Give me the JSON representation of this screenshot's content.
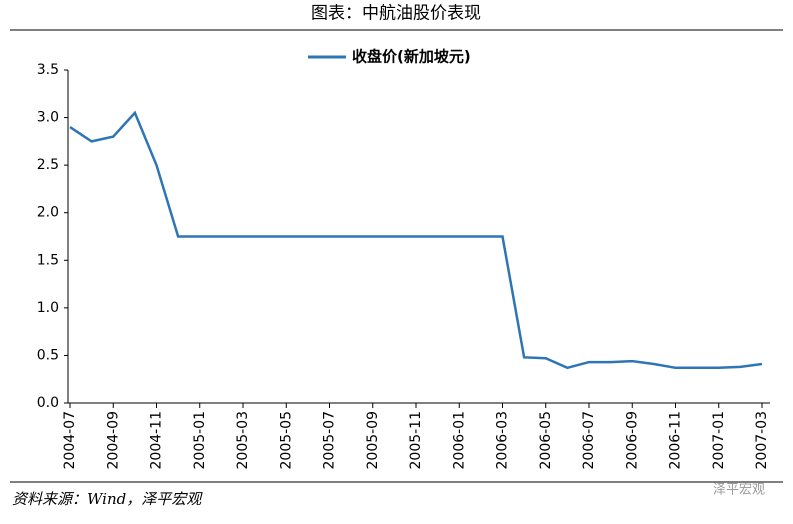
{
  "chart_data": {
    "type": "line",
    "title": "图表：中航油股价表现",
    "source": "资料来源：Wind，泽平宏观",
    "watermark": "泽平宏观",
    "categories": [
      "2004-07",
      null,
      "2004-09",
      null,
      "2004-11",
      null,
      "2005-01",
      null,
      "2005-03",
      null,
      "2005-05",
      null,
      "2005-07",
      null,
      "2005-09",
      null,
      "2005-11",
      null,
      "2006-01",
      null,
      "2006-03",
      null,
      "2006-05",
      null,
      "2006-07",
      null,
      "2006-09",
      null,
      "2006-11",
      null,
      "2007-01",
      null,
      "2007-03"
    ],
    "series": [
      {
        "name": "收盘价(新加坡元)",
        "color": "#2e75b6",
        "values": [
          2.9,
          2.75,
          2.8,
          3.05,
          2.5,
          1.75,
          1.75,
          1.75,
          1.75,
          1.75,
          1.75,
          1.75,
          1.75,
          1.75,
          1.75,
          1.75,
          1.75,
          1.75,
          1.75,
          1.75,
          1.75,
          0.48,
          0.47,
          0.37,
          0.43,
          0.43,
          0.44,
          0.41,
          0.37,
          0.37,
          0.37,
          0.38,
          0.41
        ]
      }
    ],
    "ylim": [
      0,
      3.5
    ],
    "yticks": [
      {
        "value": 0,
        "label": "0.0"
      },
      0.5,
      {
        "value": 1,
        "label": "1.0"
      },
      1.5,
      {
        "value": 2,
        "label": "2.0"
      },
      2.5,
      {
        "value": 3,
        "label": "3.0"
      },
      3.5
    ],
    "legend": "top",
    "grid": false
  }
}
